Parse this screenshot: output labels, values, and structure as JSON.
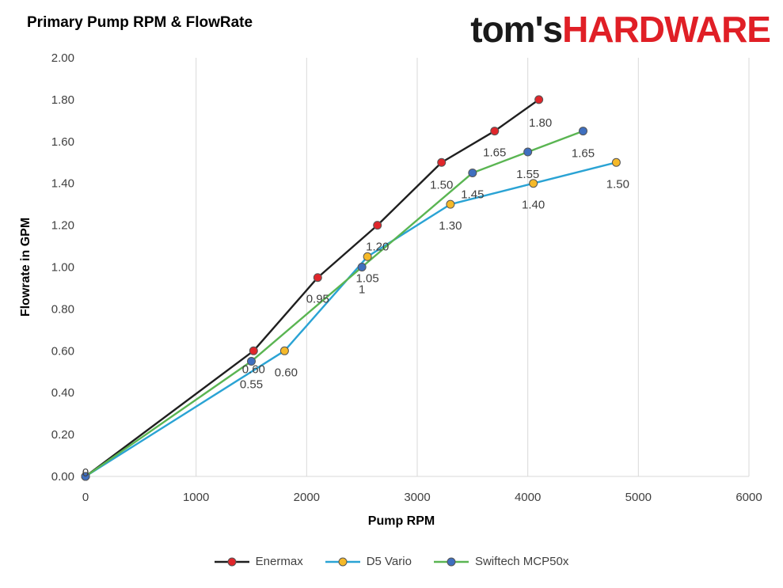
{
  "header": {
    "title": "Primary Pump RPM & FlowRate"
  },
  "logo": {
    "part1": "tom's",
    "part2": "HARDWARE"
  },
  "chart_data": {
    "type": "line",
    "title": "Primary Pump RPM & FlowRate",
    "xlabel": "Pump RPM",
    "ylabel": "Flowrate in GPM",
    "xlim": [
      0,
      6000
    ],
    "ylim": [
      0,
      2.0
    ],
    "xticks": [
      "0",
      "1000",
      "2000",
      "3000",
      "4000",
      "5000",
      "6000"
    ],
    "yticks": [
      "0.00",
      "0.20",
      "0.40",
      "0.60",
      "0.80",
      "1.00",
      "1.20",
      "1.40",
      "1.60",
      "1.80",
      "2.00"
    ],
    "grid": "vertical",
    "legend": "bottom",
    "series": [
      {
        "name": "Enermax",
        "color": "#1f1f1f",
        "marker": "#e0262b",
        "points": [
          [
            0,
            0
          ],
          [
            1520,
            0.6
          ],
          [
            2100,
            0.95
          ],
          [
            2640,
            1.2
          ],
          [
            3220,
            1.5
          ],
          [
            3700,
            1.65
          ],
          [
            4100,
            1.8
          ]
        ],
        "labels": [
          "",
          "0.60",
          "0.95",
          "1.20",
          "1.50",
          "1.65",
          "1.80"
        ]
      },
      {
        "name": "D5 Vario",
        "color": "#2aa3d4",
        "marker": "#f5b929",
        "points": [
          [
            0,
            0
          ],
          [
            1800,
            0.6
          ],
          [
            2550,
            1.05
          ],
          [
            3300,
            1.3
          ],
          [
            4050,
            1.4
          ],
          [
            4800,
            1.5
          ]
        ],
        "labels": [
          "",
          "0.60",
          "1.05",
          "1.30",
          "1.40",
          "1.50"
        ]
      },
      {
        "name": "Swiftech MCP50x",
        "color": "#5ab552",
        "marker": "#3f6fbf",
        "points": [
          [
            0,
            0
          ],
          [
            1500,
            0.55
          ],
          [
            2500,
            1.0
          ],
          [
            3500,
            1.45
          ],
          [
            4000,
            1.55
          ],
          [
            4500,
            1.65
          ]
        ],
        "labels": [
          "0",
          "0.55",
          "1",
          "1.45",
          "1.55",
          "1.65"
        ]
      }
    ]
  }
}
